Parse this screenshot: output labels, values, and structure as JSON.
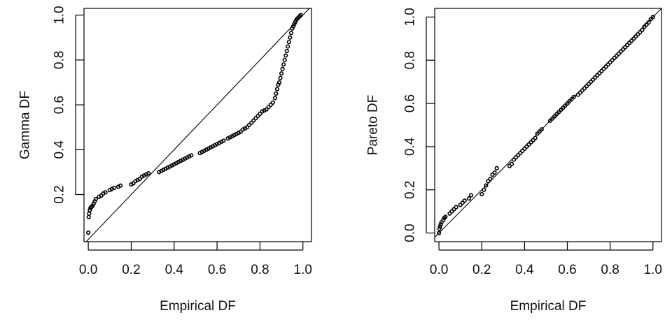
{
  "chart_data": [
    {
      "type": "scatter",
      "xlabel": "Empirical DF",
      "ylabel": "Gamma DF",
      "xlim": [
        -0.02,
        1.04
      ],
      "ylim": [
        -0.01,
        1.03
      ],
      "x_ticks": [
        0.0,
        0.2,
        0.4,
        0.6,
        0.8,
        1.0
      ],
      "x_tick_labels": [
        "0.0",
        "0.2",
        "0.4",
        "0.6",
        "0.8",
        "1.0"
      ],
      "y_ticks": [
        0.2,
        0.4,
        0.6,
        0.8,
        1.0
      ],
      "y_tick_labels": [
        "0.2",
        "0.4",
        "0.6",
        "0.8",
        "1.0"
      ],
      "reference_line": "y = x",
      "series": [
        {
          "points": [
            [
              0.0,
              0.03
            ],
            [
              0.002,
              0.1
            ],
            [
              0.004,
              0.115
            ],
            [
              0.007,
              0.13
            ],
            [
              0.01,
              0.14
            ],
            [
              0.015,
              0.145
            ],
            [
              0.02,
              0.15
            ],
            [
              0.025,
              0.16
            ],
            [
              0.03,
              0.17
            ],
            [
              0.035,
              0.18
            ],
            [
              0.05,
              0.19
            ],
            [
              0.06,
              0.195
            ],
            [
              0.07,
              0.205
            ],
            [
              0.08,
              0.21
            ],
            [
              0.1,
              0.22
            ],
            [
              0.11,
              0.225
            ],
            [
              0.12,
              0.23
            ],
            [
              0.14,
              0.235
            ],
            [
              0.15,
              0.24
            ],
            [
              0.2,
              0.245
            ],
            [
              0.21,
              0.25
            ],
            [
              0.22,
              0.26
            ],
            [
              0.23,
              0.265
            ],
            [
              0.24,
              0.27
            ],
            [
              0.25,
              0.28
            ],
            [
              0.26,
              0.285
            ],
            [
              0.27,
              0.29
            ],
            [
              0.28,
              0.295
            ],
            [
              0.33,
              0.3
            ],
            [
              0.34,
              0.305
            ],
            [
              0.35,
              0.31
            ],
            [
              0.36,
              0.315
            ],
            [
              0.37,
              0.32
            ],
            [
              0.38,
              0.325
            ],
            [
              0.39,
              0.33
            ],
            [
              0.4,
              0.335
            ],
            [
              0.41,
              0.34
            ],
            [
              0.42,
              0.345
            ],
            [
              0.43,
              0.35
            ],
            [
              0.44,
              0.355
            ],
            [
              0.45,
              0.36
            ],
            [
              0.46,
              0.365
            ],
            [
              0.47,
              0.37
            ],
            [
              0.48,
              0.375
            ],
            [
              0.52,
              0.385
            ],
            [
              0.53,
              0.39
            ],
            [
              0.54,
              0.395
            ],
            [
              0.55,
              0.4
            ],
            [
              0.56,
              0.405
            ],
            [
              0.57,
              0.41
            ],
            [
              0.58,
              0.415
            ],
            [
              0.59,
              0.42
            ],
            [
              0.6,
              0.425
            ],
            [
              0.61,
              0.43
            ],
            [
              0.62,
              0.435
            ],
            [
              0.63,
              0.44
            ],
            [
              0.65,
              0.45
            ],
            [
              0.66,
              0.455
            ],
            [
              0.67,
              0.46
            ],
            [
              0.68,
              0.465
            ],
            [
              0.69,
              0.47
            ],
            [
              0.7,
              0.475
            ],
            [
              0.71,
              0.48
            ],
            [
              0.72,
              0.49
            ],
            [
              0.73,
              0.495
            ],
            [
              0.74,
              0.5
            ],
            [
              0.75,
              0.51
            ],
            [
              0.76,
              0.52
            ],
            [
              0.77,
              0.53
            ],
            [
              0.78,
              0.54
            ],
            [
              0.79,
              0.55
            ],
            [
              0.8,
              0.56
            ],
            [
              0.81,
              0.57
            ],
            [
              0.82,
              0.575
            ],
            [
              0.83,
              0.58
            ],
            [
              0.84,
              0.59
            ],
            [
              0.85,
              0.6
            ],
            [
              0.86,
              0.61
            ],
            [
              0.87,
              0.63
            ],
            [
              0.875,
              0.65
            ],
            [
              0.88,
              0.67
            ],
            [
              0.885,
              0.69
            ],
            [
              0.89,
              0.7
            ],
            [
              0.895,
              0.72
            ],
            [
              0.9,
              0.74
            ],
            [
              0.905,
              0.76
            ],
            [
              0.91,
              0.78
            ],
            [
              0.915,
              0.8
            ],
            [
              0.92,
              0.82
            ],
            [
              0.925,
              0.84
            ],
            [
              0.93,
              0.86
            ],
            [
              0.935,
              0.88
            ],
            [
              0.94,
              0.9
            ],
            [
              0.945,
              0.92
            ],
            [
              0.95,
              0.94
            ],
            [
              0.955,
              0.95
            ],
            [
              0.96,
              0.96
            ],
            [
              0.965,
              0.97
            ],
            [
              0.97,
              0.98
            ],
            [
              0.975,
              0.985
            ],
            [
              0.98,
              0.99
            ],
            [
              0.985,
              0.995
            ],
            [
              0.99,
              1.0
            ]
          ]
        }
      ]
    },
    {
      "type": "scatter",
      "xlabel": "Empirical DF",
      "ylabel": "Pareto DF",
      "xlim": [
        -0.02,
        1.04
      ],
      "ylim": [
        -0.04,
        1.04
      ],
      "x_ticks": [
        0.0,
        0.2,
        0.4,
        0.6,
        0.8,
        1.0
      ],
      "x_tick_labels": [
        "0.0",
        "0.2",
        "0.4",
        "0.6",
        "0.8",
        "1.0"
      ],
      "y_ticks": [
        0.0,
        0.2,
        0.4,
        0.6,
        0.8,
        1.0
      ],
      "y_tick_labels": [
        "0.0",
        "0.2",
        "0.4",
        "0.6",
        "0.8",
        "1.0"
      ],
      "reference_line": "y = x",
      "series": [
        {
          "points": [
            [
              0.0,
              0.0
            ],
            [
              0.002,
              0.02
            ],
            [
              0.005,
              0.03
            ],
            [
              0.008,
              0.04
            ],
            [
              0.012,
              0.05
            ],
            [
              0.02,
              0.06
            ],
            [
              0.025,
              0.07
            ],
            [
              0.03,
              0.075
            ],
            [
              0.05,
              0.09
            ],
            [
              0.06,
              0.1
            ],
            [
              0.07,
              0.11
            ],
            [
              0.08,
              0.12
            ],
            [
              0.1,
              0.13
            ],
            [
              0.11,
              0.14
            ],
            [
              0.12,
              0.15
            ],
            [
              0.14,
              0.16
            ],
            [
              0.15,
              0.175
            ],
            [
              0.2,
              0.18
            ],
            [
              0.21,
              0.2
            ],
            [
              0.22,
              0.22
            ],
            [
              0.23,
              0.24
            ],
            [
              0.24,
              0.25
            ],
            [
              0.25,
              0.27
            ],
            [
              0.26,
              0.28
            ],
            [
              0.27,
              0.3
            ],
            [
              0.33,
              0.31
            ],
            [
              0.34,
              0.32
            ],
            [
              0.35,
              0.34
            ],
            [
              0.36,
              0.35
            ],
            [
              0.37,
              0.36
            ],
            [
              0.38,
              0.37
            ],
            [
              0.39,
              0.38
            ],
            [
              0.4,
              0.39
            ],
            [
              0.41,
              0.4
            ],
            [
              0.42,
              0.41
            ],
            [
              0.43,
              0.42
            ],
            [
              0.44,
              0.43
            ],
            [
              0.45,
              0.44
            ],
            [
              0.46,
              0.46
            ],
            [
              0.47,
              0.47
            ],
            [
              0.48,
              0.48
            ],
            [
              0.52,
              0.52
            ],
            [
              0.53,
              0.53
            ],
            [
              0.54,
              0.54
            ],
            [
              0.55,
              0.55
            ],
            [
              0.56,
              0.56
            ],
            [
              0.57,
              0.57
            ],
            [
              0.58,
              0.58
            ],
            [
              0.59,
              0.59
            ],
            [
              0.6,
              0.6
            ],
            [
              0.61,
              0.61
            ],
            [
              0.62,
              0.62
            ],
            [
              0.63,
              0.63
            ],
            [
              0.65,
              0.64
            ],
            [
              0.66,
              0.65
            ],
            [
              0.67,
              0.66
            ],
            [
              0.68,
              0.67
            ],
            [
              0.69,
              0.68
            ],
            [
              0.7,
              0.69
            ],
            [
              0.71,
              0.7
            ],
            [
              0.72,
              0.71
            ],
            [
              0.73,
              0.72
            ],
            [
              0.74,
              0.73
            ],
            [
              0.75,
              0.74
            ],
            [
              0.76,
              0.75
            ],
            [
              0.77,
              0.76
            ],
            [
              0.78,
              0.77
            ],
            [
              0.79,
              0.78
            ],
            [
              0.8,
              0.79
            ],
            [
              0.81,
              0.8
            ],
            [
              0.82,
              0.81
            ],
            [
              0.83,
              0.82
            ],
            [
              0.84,
              0.83
            ],
            [
              0.85,
              0.84
            ],
            [
              0.86,
              0.85
            ],
            [
              0.87,
              0.86
            ],
            [
              0.88,
              0.87
            ],
            [
              0.89,
              0.88
            ],
            [
              0.9,
              0.89
            ],
            [
              0.91,
              0.9
            ],
            [
              0.92,
              0.91
            ],
            [
              0.93,
              0.92
            ],
            [
              0.94,
              0.93
            ],
            [
              0.95,
              0.94
            ],
            [
              0.96,
              0.955
            ],
            [
              0.97,
              0.965
            ],
            [
              0.98,
              0.975
            ],
            [
              0.99,
              0.99
            ],
            [
              1.0,
              1.0
            ]
          ]
        }
      ]
    }
  ]
}
